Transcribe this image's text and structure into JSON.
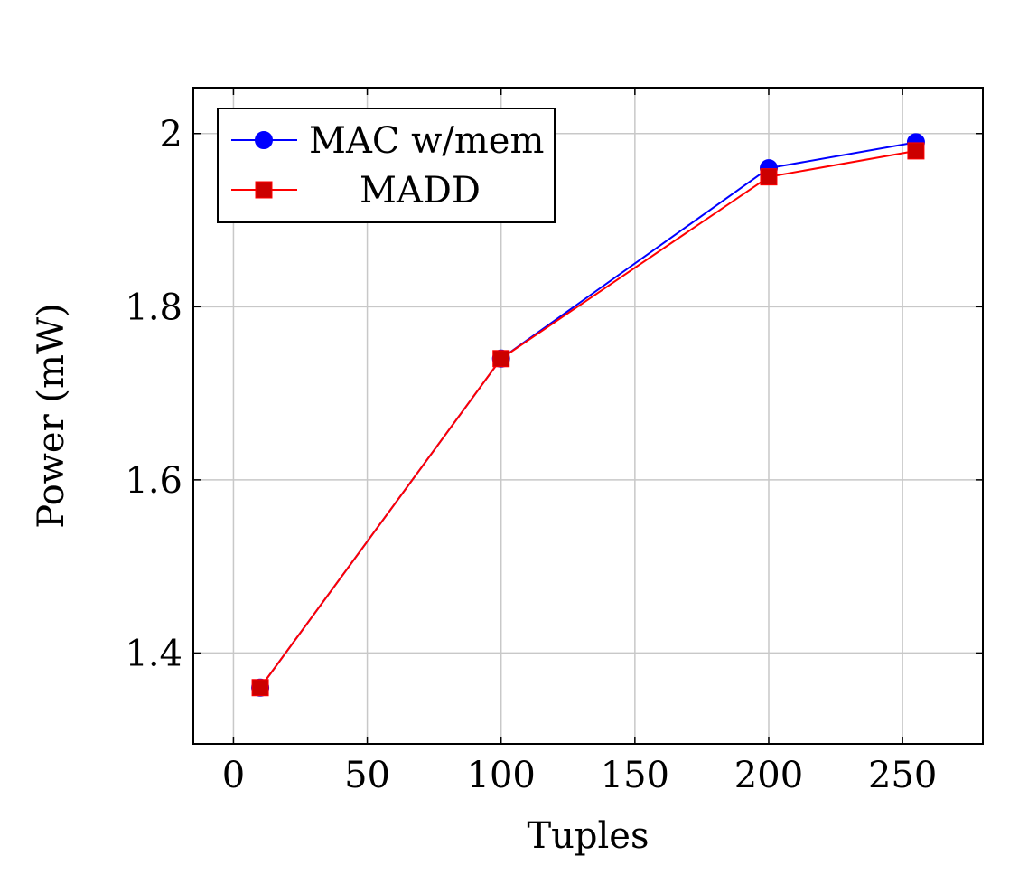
{
  "chart_data": {
    "type": "line",
    "title": "",
    "xlabel": "Tuples",
    "ylabel": "Power (mW)",
    "xlim": [
      -15,
      280
    ],
    "ylim": [
      1.295,
      2.053
    ],
    "x_ticks": [
      0,
      50,
      100,
      150,
      200,
      250
    ],
    "y_ticks": [
      1.4,
      1.6,
      1.8,
      2
    ],
    "x_tick_labels": [
      "0",
      "50",
      "100",
      "150",
      "200",
      "250"
    ],
    "y_tick_labels": [
      "1.4",
      "1.6",
      "1.8",
      "2"
    ],
    "grid": true,
    "legend_position": "top-left",
    "series": [
      {
        "name": "MAC w/mem",
        "color": "#0000ff",
        "marker": "circle",
        "x": [
          10,
          100,
          200,
          255
        ],
        "y": [
          1.36,
          1.74,
          1.96,
          1.99
        ]
      },
      {
        "name": "MADD",
        "color": "#ff0000",
        "marker_fill": "#cc0000",
        "marker": "square",
        "x": [
          10,
          100,
          200,
          255
        ],
        "y": [
          1.36,
          1.74,
          1.95,
          1.98
        ]
      }
    ]
  }
}
